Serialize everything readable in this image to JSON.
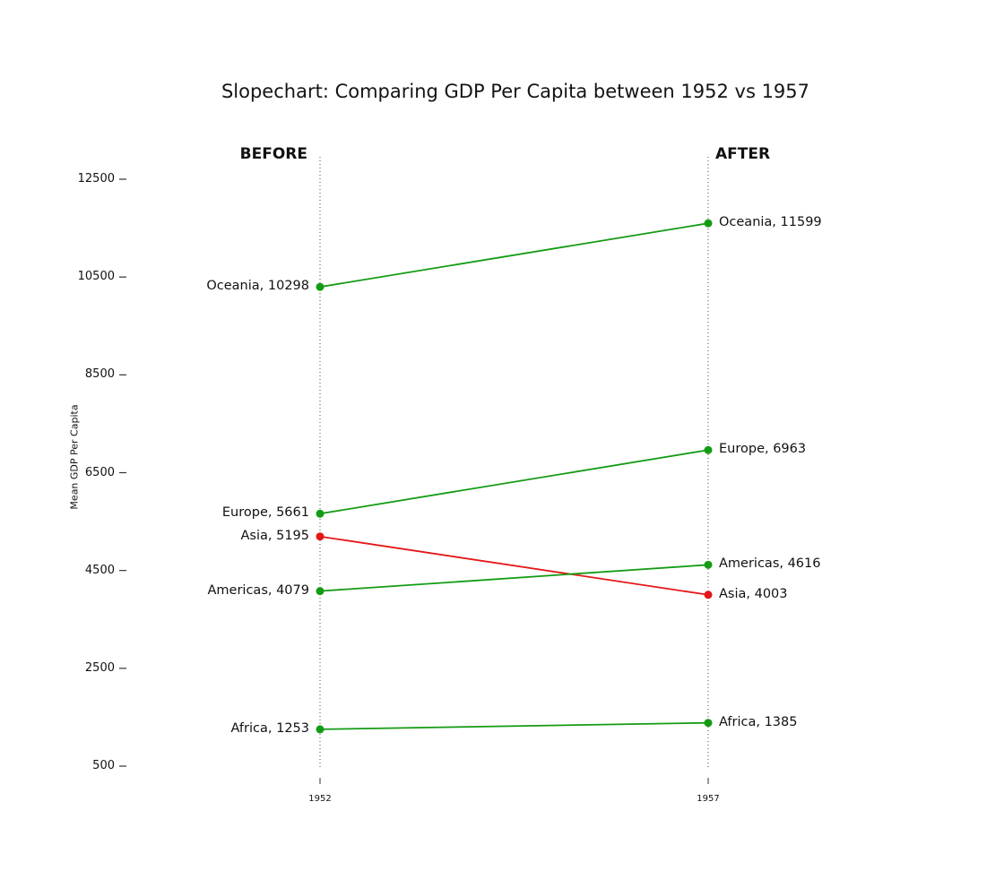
{
  "title": "Slopechart: Comparing GDP Per Capita between 1952 vs 1957",
  "columns": {
    "before": "BEFORE",
    "after": "AFTER"
  },
  "axis": {
    "ylabel": "Mean GDP Per Capita",
    "ytick_labels": [
      "12500",
      "10500",
      "8500",
      "6500",
      "4500",
      "2500",
      "500"
    ],
    "xtick_labels": [
      "1952",
      "1957"
    ]
  },
  "colors": {
    "increase": "#149b14",
    "decrease": "#e51616",
    "guide_line": "#4a4a4a",
    "tick": "#333333",
    "text": "#111111"
  },
  "chart_data": {
    "type": "line",
    "subtype": "slopegraph",
    "title": "Slopechart: Comparing GDP Per Capita between 1952 vs 1957",
    "ylabel": "Mean GDP Per Capita",
    "x": [
      "1952",
      "1957"
    ],
    "series": [
      {
        "name": "Oceania",
        "values": [
          10298,
          11599
        ],
        "trend": "increase",
        "label_before": "Oceania, 10298",
        "label_after": "Oceania, 11599"
      },
      {
        "name": "Europe",
        "values": [
          5661,
          6963
        ],
        "trend": "increase",
        "label_before": "Europe, 5661",
        "label_after": "Europe, 6963"
      },
      {
        "name": "Asia",
        "values": [
          5195,
          4003
        ],
        "trend": "decrease",
        "label_before": "Asia, 5195",
        "label_after": "Asia, 4003"
      },
      {
        "name": "Americas",
        "values": [
          4079,
          4616
        ],
        "trend": "increase",
        "label_before": "Americas, 4079",
        "label_after": "Americas, 4616"
      },
      {
        "name": "Africa",
        "values": [
          1253,
          1385
        ],
        "trend": "increase",
        "label_before": "Africa, 1253",
        "label_after": "Africa, 1385"
      }
    ],
    "ylim": [
      500,
      12500
    ],
    "ytick_values": [
      12500,
      10500,
      8500,
      6500,
      4500,
      2500,
      500
    ],
    "grid": false,
    "legend": "none"
  }
}
